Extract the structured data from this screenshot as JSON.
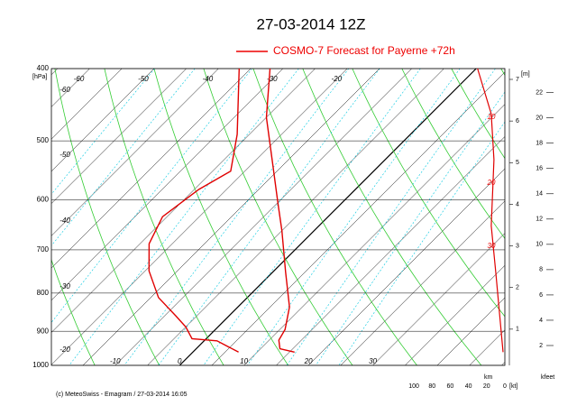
{
  "chart_data": {
    "type": "emagram",
    "title": "27-03-2014  12Z",
    "legend_label": "COSMO-7 Forecast for Payerne   +72h",
    "footer": "(c) MeteoSwiss - Emagram  /  27-03-2014 16:05",
    "y_label": "[hPa]",
    "yscale": "log",
    "ylim": [
      400,
      1000
    ],
    "yticks": [
      400,
      500,
      600,
      700,
      800,
      900,
      1000
    ],
    "xlim": [
      -19.9,
      50.5
    ],
    "xticks": [
      -10,
      0,
      10,
      20,
      30
    ],
    "isotherm_labels": [
      -60,
      -50,
      -40,
      -30,
      -20
    ],
    "grid": true,
    "profiles": [
      {
        "color": "#e00000",
        "pressure": [
          960,
          950,
          925,
          895,
          835,
          750,
          660,
          605,
          535,
          465,
          400
        ],
        "values": [
          15.8,
          13,
          11.5,
          10.8,
          8,
          2,
          -5,
          -10,
          -17,
          -25,
          -32
        ]
      },
      {
        "color": "#e00000",
        "pressure": [
          960,
          927,
          921,
          888,
          858,
          811,
          747,
          687,
          632,
          581,
          549,
          490,
          400
        ],
        "values": [
          7.1,
          2,
          -2.2,
          -5,
          -8.3,
          -13.8,
          -19.4,
          -23.6,
          -25.7,
          -24.3,
          -22.2,
          -26.9,
          -36.8
        ]
      }
    ],
    "wind": {
      "color": "#e00000",
      "pressure": [
        960,
        750,
        650,
        530,
        460,
        400
      ],
      "values": [
        2,
        10,
        15,
        12,
        15,
        30
      ],
      "xlim": [
        104,
        0
      ],
      "xticks": [
        100,
        80,
        60,
        40,
        20,
        0
      ],
      "x_label": "[kt]",
      "annotations": [
        "10",
        "20",
        "30"
      ]
    },
    "km_label": "km",
    "m_label": "[m]",
    "km_lim": [
      0.13,
      7.26
    ],
    "km_ticks": [
      1,
      2,
      3,
      4,
      5,
      6,
      7
    ],
    "kfeet_label": "kfeet",
    "kfeet_lim": [
      0.43,
      23.9
    ],
    "kfeet_ticks": [
      2,
      4,
      6,
      8,
      10,
      12,
      14,
      16,
      18,
      20,
      22
    ]
  }
}
